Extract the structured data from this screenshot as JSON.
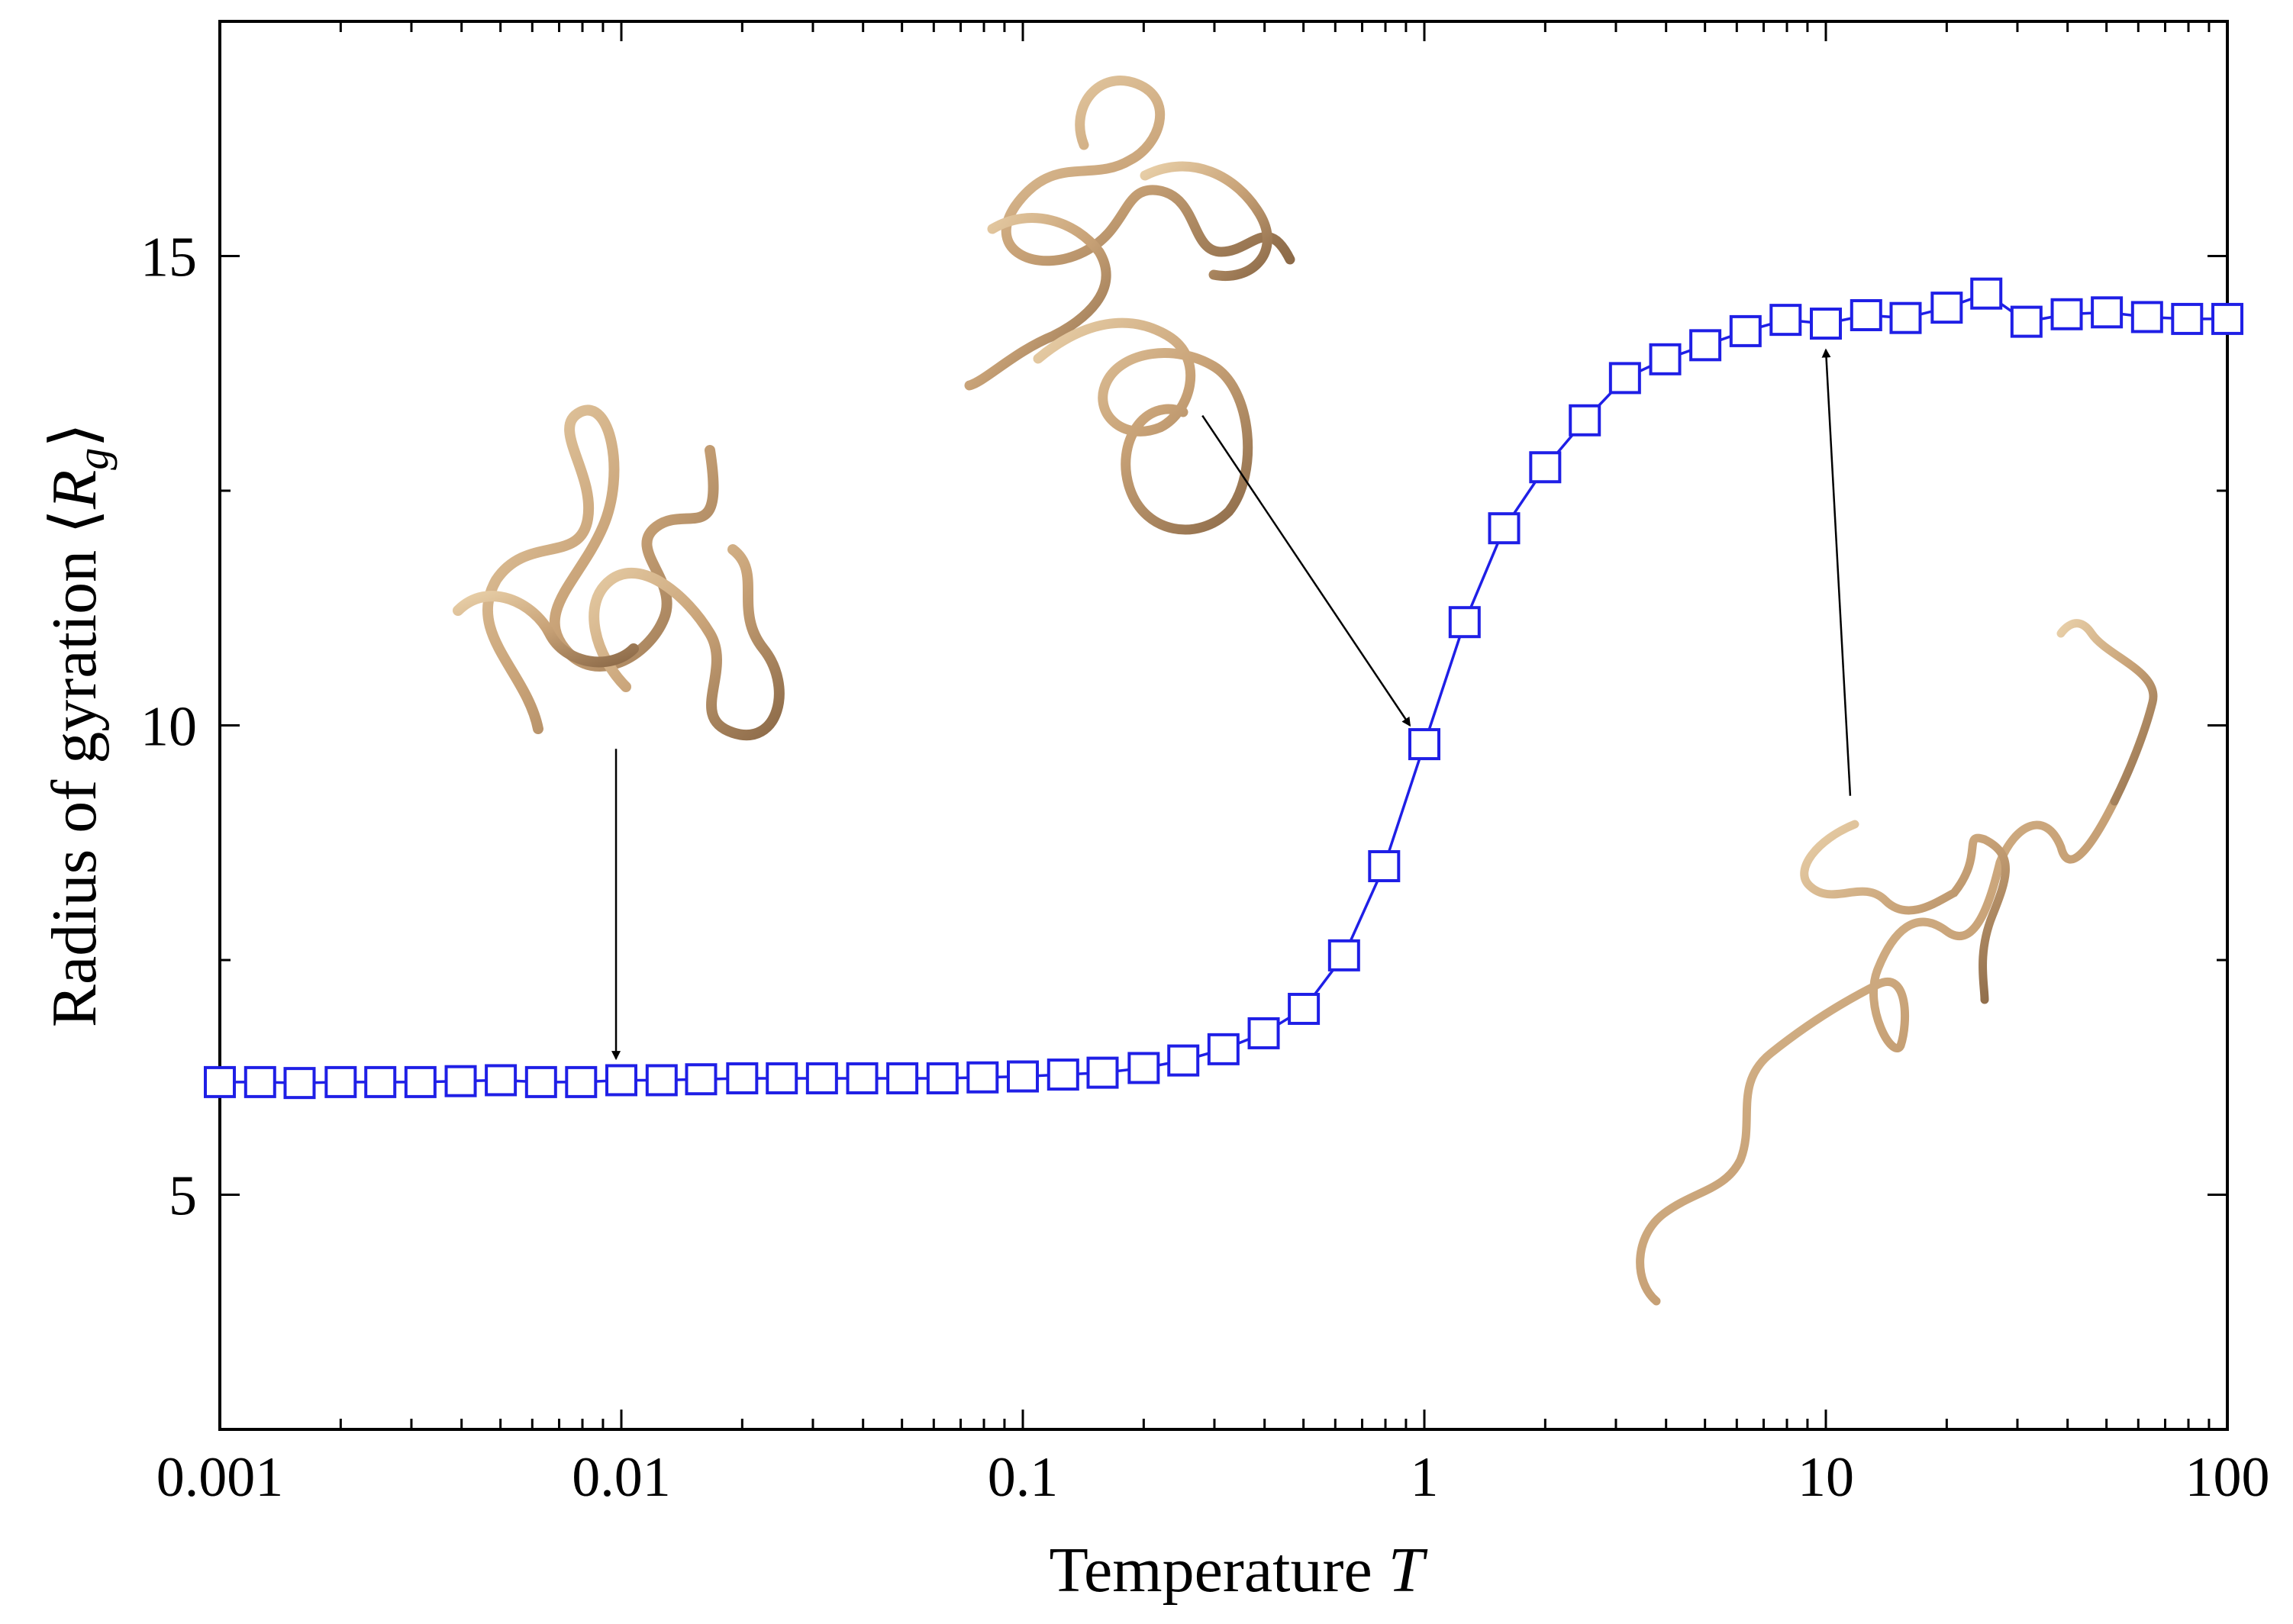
{
  "chart_data": {
    "type": "scatter",
    "title": "",
    "xlabel": "Temperature",
    "xlabel_var": "T",
    "ylabel": "Radius of gyration",
    "ylabel_open": "⟨",
    "ylabel_var": "R",
    "ylabel_sub": "g",
    "ylabel_close": "⟩",
    "xscale": "log",
    "xlim": [
      0.001,
      100
    ],
    "ylim": [
      2.5,
      17.5
    ],
    "x_ticks": [
      {
        "value": 0.001,
        "label": "0.001"
      },
      {
        "value": 0.01,
        "label": "0.01"
      },
      {
        "value": 0.1,
        "label": "0.1"
      },
      {
        "value": 1,
        "label": "1"
      },
      {
        "value": 10,
        "label": "10"
      },
      {
        "value": 100,
        "label": "100"
      }
    ],
    "y_ticks": [
      {
        "value": 5,
        "label": "5"
      },
      {
        "value": 10,
        "label": "10"
      },
      {
        "value": 15,
        "label": "15"
      }
    ],
    "grid": false,
    "legend": "none",
    "series": [
      {
        "marker": "open-square",
        "line": "connected",
        "color": "#1f1fe6",
        "x": [
          0.001,
          0.00126,
          0.00158,
          0.002,
          0.00251,
          0.00316,
          0.00398,
          0.00501,
          0.00631,
          0.00794,
          0.01,
          0.0126,
          0.0158,
          0.02,
          0.0251,
          0.0316,
          0.0398,
          0.0501,
          0.0631,
          0.0794,
          0.1,
          0.126,
          0.158,
          0.2,
          0.251,
          0.316,
          0.398,
          0.501,
          0.631,
          0.794,
          1.0,
          1.26,
          1.58,
          2.0,
          2.51,
          3.16,
          3.98,
          5.01,
          6.31,
          7.94,
          10.0,
          12.6,
          15.8,
          20.0,
          25.1,
          31.6,
          39.8,
          50.1,
          63.1,
          79.4,
          100
        ],
        "y": [
          6.2,
          6.2,
          6.19,
          6.2,
          6.2,
          6.2,
          6.21,
          6.22,
          6.2,
          6.2,
          6.22,
          6.22,
          6.23,
          6.24,
          6.24,
          6.24,
          6.24,
          6.24,
          6.24,
          6.25,
          6.26,
          6.28,
          6.3,
          6.35,
          6.43,
          6.55,
          6.72,
          6.98,
          7.55,
          8.5,
          9.8,
          11.1,
          12.1,
          12.75,
          13.25,
          13.7,
          13.9,
          14.05,
          14.2,
          14.32,
          14.28,
          14.37,
          14.34,
          14.45,
          14.6,
          14.3,
          14.38,
          14.4,
          14.35,
          14.33,
          14.33
        ]
      }
    ],
    "annotations": [
      {
        "type": "arrow",
        "from": [
          0.0097,
          9.75
        ],
        "to": [
          0.0097,
          6.45
        ]
      },
      {
        "type": "arrow",
        "from": [
          0.28,
          13.3
        ],
        "to": [
          0.92,
          10.0
        ]
      },
      {
        "type": "arrow",
        "from": [
          11.5,
          9.25
        ],
        "to": [
          10.0,
          14.0
        ]
      },
      {
        "type": "image",
        "description": "compact polymer coil",
        "near": [
          0.0097,
          11.5
        ]
      },
      {
        "type": "image",
        "description": "intermediate polymer coil",
        "near": [
          0.16,
          14.5
        ]
      },
      {
        "type": "image",
        "description": "extended polymer chain",
        "near": [
          20.0,
          7.2
        ]
      }
    ]
  }
}
